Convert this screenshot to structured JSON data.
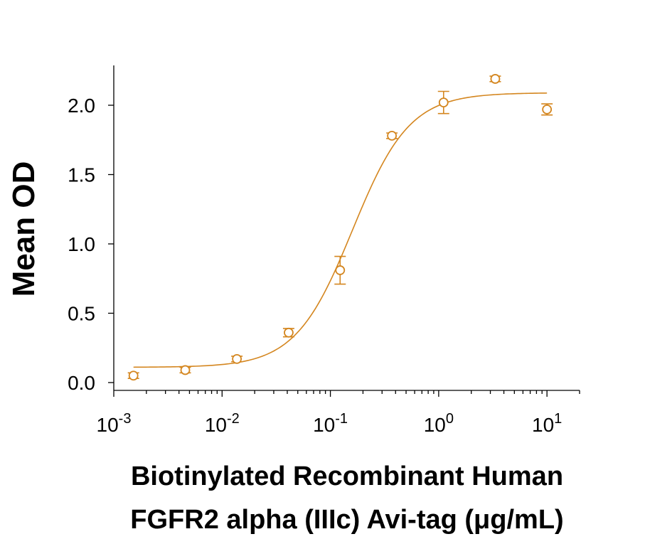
{
  "chart_data": {
    "type": "scatter",
    "title": "",
    "ylabel": "Mean OD",
    "xlabel_lines": [
      "Biotinylated Recombinant Human",
      "FGFR2 alpha (IIIc) Avi-tag (μg/mL)"
    ],
    "xscale": "log",
    "xlim": [
      0.001,
      20
    ],
    "ylim": [
      -0.05,
      2.3
    ],
    "x_ticks": [
      {
        "value": 0.001,
        "base": "10",
        "exp": "-3"
      },
      {
        "value": 0.01,
        "base": "10",
        "exp": "-2"
      },
      {
        "value": 0.1,
        "base": "10",
        "exp": "-1"
      },
      {
        "value": 1,
        "base": "10",
        "exp": "0"
      },
      {
        "value": 10,
        "base": "10",
        "exp": "1"
      }
    ],
    "y_ticks": [
      {
        "value": 0.0,
        "label": "0.0"
      },
      {
        "value": 0.5,
        "label": "0.5"
      },
      {
        "value": 1.0,
        "label": "1.0"
      },
      {
        "value": 1.5,
        "label": "1.5"
      },
      {
        "value": 2.0,
        "label": "2.0"
      }
    ],
    "grid": false,
    "color": "#D4861F",
    "series": [
      {
        "points": [
          {
            "x": 0.00152,
            "y": 0.05,
            "err": 0.02
          },
          {
            "x": 0.00457,
            "y": 0.09,
            "err": 0.02
          },
          {
            "x": 0.0137,
            "y": 0.17,
            "err": 0.02
          },
          {
            "x": 0.0412,
            "y": 0.36,
            "err": 0.03
          },
          {
            "x": 0.123,
            "y": 0.81,
            "err": 0.1
          },
          {
            "x": 0.37,
            "y": 1.78,
            "err": 0.02
          },
          {
            "x": 1.11,
            "y": 2.02,
            "err": 0.08
          },
          {
            "x": 3.33,
            "y": 2.19,
            "err": 0.02
          },
          {
            "x": 10.0,
            "y": 1.97,
            "err": 0.04
          }
        ],
        "fit": {
          "model": "4PL",
          "bottom": 0.11,
          "top": 2.09,
          "ec50": 0.16,
          "hill": 1.65,
          "x_range": [
            0.00152,
            10.0
          ]
        }
      }
    ]
  }
}
